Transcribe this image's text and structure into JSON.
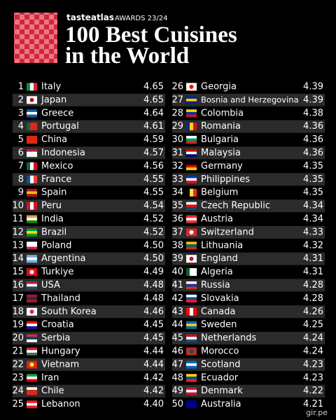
{
  "header": {
    "brand": "tasteatlas",
    "awards": "AWARDS 23/24",
    "title_lines": [
      "100 Best Cuisines",
      "in the World"
    ]
  },
  "rankings": [
    {
      "rank": 1,
      "name": "Italy",
      "rating": "4.65"
    },
    {
      "rank": 2,
      "name": "Japan",
      "rating": "4.65"
    },
    {
      "rank": 3,
      "name": "Greece",
      "rating": "4.64"
    },
    {
      "rank": 4,
      "name": "Portugal",
      "rating": "4.61"
    },
    {
      "rank": 5,
      "name": "China",
      "rating": "4.59"
    },
    {
      "rank": 6,
      "name": "Indonesia",
      "rating": "4.57"
    },
    {
      "rank": 7,
      "name": "Mexico",
      "rating": "4.56"
    },
    {
      "rank": 8,
      "name": "France",
      "rating": "4.55"
    },
    {
      "rank": 9,
      "name": "Spain",
      "rating": "4.55"
    },
    {
      "rank": 10,
      "name": "Peru",
      "rating": "4.54"
    },
    {
      "rank": 11,
      "name": "India",
      "rating": "4.52"
    },
    {
      "rank": 12,
      "name": "Brazil",
      "rating": "4.52"
    },
    {
      "rank": 13,
      "name": "Poland",
      "rating": "4.50"
    },
    {
      "rank": 14,
      "name": "Argentina",
      "rating": "4.50"
    },
    {
      "rank": 15,
      "name": "Turkiye",
      "rating": "4.49"
    },
    {
      "rank": 16,
      "name": "USA",
      "rating": "4.48"
    },
    {
      "rank": 17,
      "name": "Thailand",
      "rating": "4.48"
    },
    {
      "rank": 18,
      "name": "South Korea",
      "rating": "4.46"
    },
    {
      "rank": 19,
      "name": "Croatia",
      "rating": "4.45"
    },
    {
      "rank": 20,
      "name": "Serbia",
      "rating": "4.45"
    },
    {
      "rank": 21,
      "name": "Hungary",
      "rating": "4.44"
    },
    {
      "rank": 22,
      "name": "Vietnam",
      "rating": "4.44"
    },
    {
      "rank": 23,
      "name": "Iran",
      "rating": "4.42"
    },
    {
      "rank": 24,
      "name": "Chile",
      "rating": "4.42"
    },
    {
      "rank": 25,
      "name": "Lebanon",
      "rating": "4.40"
    },
    {
      "rank": 26,
      "name": "Georgia",
      "rating": "4.39"
    },
    {
      "rank": 27,
      "name": "Bosnia and Herzegovina",
      "rating": "4.39"
    },
    {
      "rank": 28,
      "name": "Colombia",
      "rating": "4.38"
    },
    {
      "rank": 29,
      "name": "Romania",
      "rating": "4.36"
    },
    {
      "rank": 30,
      "name": "Bulgaria",
      "rating": "4.36"
    },
    {
      "rank": 31,
      "name": "Malaysia",
      "rating": "4.36"
    },
    {
      "rank": 32,
      "name": "Germany",
      "rating": "4.35"
    },
    {
      "rank": 33,
      "name": "Philippines",
      "rating": "4.35"
    },
    {
      "rank": 34,
      "name": "Belgium",
      "rating": "4.35"
    },
    {
      "rank": 35,
      "name": "Czech Republic",
      "rating": "4.34"
    },
    {
      "rank": 36,
      "name": "Austria",
      "rating": "4.34"
    },
    {
      "rank": 37,
      "name": "Switzerland",
      "rating": "4.33"
    },
    {
      "rank": 38,
      "name": "Lithuania",
      "rating": "4.32"
    },
    {
      "rank": 39,
      "name": "England",
      "rating": "4.31"
    },
    {
      "rank": 40,
      "name": "Algeria",
      "rating": "4.31"
    },
    {
      "rank": 41,
      "name": "Russia",
      "rating": "4.28"
    },
    {
      "rank": 42,
      "name": "Slovakia",
      "rating": "4.28"
    },
    {
      "rank": 43,
      "name": "Canada",
      "rating": "4.26"
    },
    {
      "rank": 44,
      "name": "Sweden",
      "rating": "4.25"
    },
    {
      "rank": 45,
      "name": "Netherlands",
      "rating": "4.24"
    },
    {
      "rank": 46,
      "name": "Morocco",
      "rating": "4.24"
    },
    {
      "rank": 47,
      "name": "Scotland",
      "rating": "4.23"
    },
    {
      "rank": 48,
      "name": "Ecuador",
      "rating": "4.23"
    },
    {
      "rank": 49,
      "name": "Denmark",
      "rating": "4.22"
    },
    {
      "rank": 50,
      "name": "Australia",
      "rating": "4.21"
    }
  ],
  "watermark": "gir.pe"
}
